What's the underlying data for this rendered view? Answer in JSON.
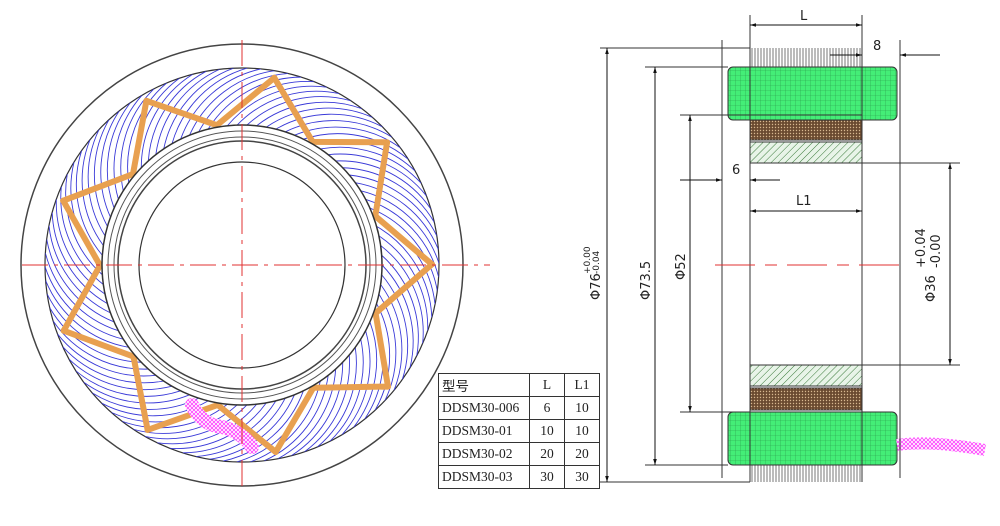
{
  "dimensions": {
    "L": "L",
    "eight": "8",
    "six": "6",
    "L1": "L1",
    "phi76": "Φ76",
    "phi76_tol_upper": "+0.00",
    "phi76_tol_lower": "-0.04",
    "phi73_5": "Φ73.5",
    "phi52": "Φ52",
    "phi36": "Φ36",
    "phi36_tol_upper": "+0.04",
    "phi36_tol_lower": "-0.00"
  },
  "table": {
    "headers": [
      "型号",
      "L",
      "L1"
    ],
    "rows": [
      [
        "DDSM30-006",
        "6",
        "10"
      ],
      [
        "DDSM30-01",
        "10",
        "10"
      ],
      [
        "DDSM30-02",
        "20",
        "20"
      ],
      [
        "DDSM30-03",
        "30",
        "30"
      ]
    ]
  },
  "colors": {
    "winding": "#3a3ad8",
    "spoke": "#e8a050",
    "centerline": "#e03030",
    "end_cap": "#40e070",
    "coil": "#6a4a30",
    "lead_wire": "#ff60ff"
  }
}
